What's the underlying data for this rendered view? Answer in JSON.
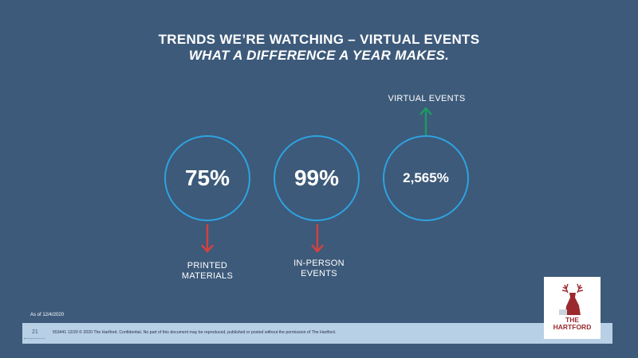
{
  "slide": {
    "title_line1": "TRENDS WE’RE WATCHING – VIRTUAL EVENTS",
    "title_line2": "WHAT A DIFFERENCE A YEAR MAKES.",
    "as_of": "As of 12/4/2020",
    "page_number": "21",
    "footer_text": "553441 12/20 © 2020 The Hartford. Confidential. No part of this document may be reproduced, published or posted without the permission of The Hartford.",
    "logo_the": "THE",
    "logo_name": "HARTFORD"
  },
  "stats": [
    {
      "value": "75%",
      "label_line1": "PRINTED",
      "label_line2": "MATERIALS",
      "direction": "down"
    },
    {
      "value": "99%",
      "label_line1": "IN-PERSON",
      "label_line2": "EVENTS",
      "direction": "down"
    },
    {
      "value": "2,565%",
      "label_line1": "VIRTUAL EVENTS",
      "label_line2": "",
      "direction": "up"
    }
  ],
  "colors": {
    "background": "#3d5a7a",
    "circle_border": "#2ea3e0",
    "arrow_down": "#d9403b",
    "arrow_up": "#1f9a63",
    "footer_band": "#b8d0e6",
    "logo_red": "#9b2a2f"
  }
}
